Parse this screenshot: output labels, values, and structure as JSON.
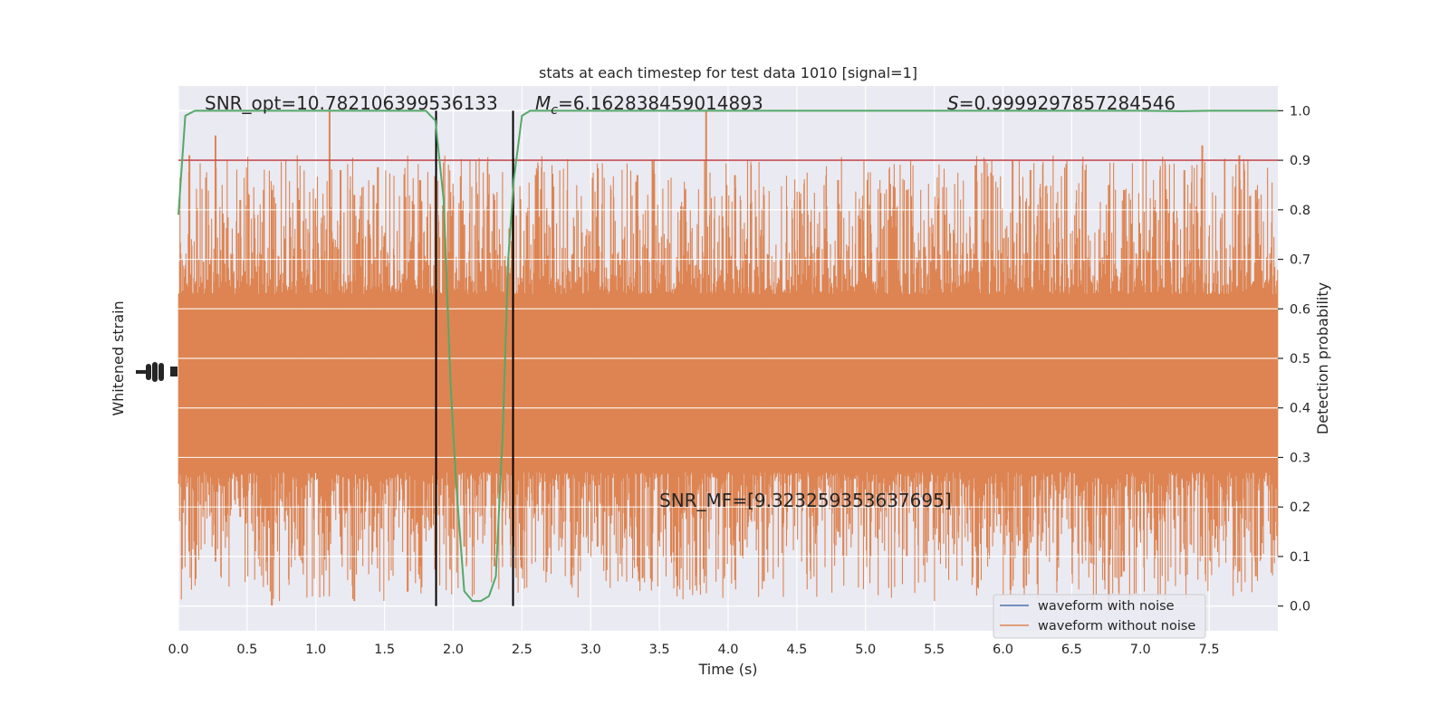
{
  "chart_data": {
    "type": "line",
    "title": "stats at each timestep for test data 1010 [signal=1]",
    "xlabel": "Time (s)",
    "ylabel_left": "Whitened strain",
    "ylabel_right": "Detection probability",
    "xlim": [
      0.0,
      8.0
    ],
    "ylim_right": [
      -0.05,
      1.05
    ],
    "x_ticks": [
      "0.0",
      "0.5",
      "1.0",
      "1.5",
      "2.0",
      "2.5",
      "3.0",
      "3.5",
      "4.0",
      "4.5",
      "5.0",
      "5.5",
      "6.0",
      "6.5",
      "7.0",
      "7.5"
    ],
    "x_tick_values": [
      0.0,
      0.5,
      1.0,
      1.5,
      2.0,
      2.5,
      3.0,
      3.5,
      4.0,
      4.5,
      5.0,
      5.5,
      6.0,
      6.5,
      7.0,
      7.5
    ],
    "y_right_ticks": [
      "0.0",
      "0.1",
      "0.2",
      "0.3",
      "0.4",
      "0.5",
      "0.6",
      "0.7",
      "0.8",
      "0.9",
      "1.0"
    ],
    "y_right_tick_values": [
      0.0,
      0.1,
      0.2,
      0.3,
      0.4,
      0.5,
      0.6,
      0.7,
      0.8,
      0.9,
      1.0
    ],
    "grid": true,
    "legend_placement": "lower-right",
    "series": [
      {
        "name": "waveform with noise",
        "color": "#4c72b0",
        "axis": "left"
      },
      {
        "name": "waveform without noise",
        "color": "#dd8452",
        "axis": "left"
      }
    ],
    "detection_probability": {
      "color": "#55a868",
      "x": [
        0.0,
        0.05,
        0.12,
        0.2,
        0.3,
        0.5,
        1.0,
        1.5,
        1.7,
        1.8,
        1.87,
        1.93,
        1.98,
        2.02,
        2.08,
        2.14,
        2.2,
        2.26,
        2.31,
        2.36,
        2.4,
        2.44,
        2.5,
        2.56,
        2.65,
        3.0,
        4.0,
        5.0,
        6.0,
        7.0,
        7.3,
        7.5,
        8.0
      ],
      "y": [
        0.79,
        0.99,
        1.0,
        1.0,
        1.0,
        1.0,
        1.0,
        1.0,
        1.0,
        1.0,
        0.98,
        0.82,
        0.45,
        0.25,
        0.03,
        0.01,
        0.01,
        0.02,
        0.06,
        0.35,
        0.7,
        0.86,
        0.99,
        1.0,
        1.0,
        1.0,
        1.0,
        1.0,
        1.0,
        1.0,
        0.999,
        1.0,
        1.0
      ]
    },
    "threshold": {
      "value": 0.9,
      "color": "#c44e52"
    },
    "vertical_markers": {
      "x": [
        1.875,
        2.435
      ],
      "color": "#000000"
    },
    "waveform_band": {
      "center": 0.45,
      "core_half_width": 0.14,
      "spikes": [
        [
          0.08,
          0.91,
          0.11
        ],
        [
          0.27,
          0.95,
          0.09
        ],
        [
          0.45,
          0.82,
          0.18
        ],
        [
          0.68,
          0.84,
          0.0
        ],
        [
          0.88,
          0.82,
          0.1
        ],
        [
          1.1,
          1.0,
          0.15
        ],
        [
          1.18,
          0.88,
          0.14
        ],
        [
          1.28,
          0.83,
          0.01
        ],
        [
          1.42,
          0.85,
          0.15
        ],
        [
          1.76,
          0.86,
          0.08
        ],
        [
          2.08,
          0.77,
          0.12
        ],
        [
          2.3,
          0.82,
          0.08
        ],
        [
          2.6,
          0.87,
          0.2
        ],
        [
          3.05,
          0.8,
          0.12
        ],
        [
          3.34,
          0.87,
          0.22
        ],
        [
          3.45,
          0.9,
          0.18
        ],
        [
          3.84,
          1.0,
          0.18
        ],
        [
          4.05,
          0.87,
          0.15
        ],
        [
          4.26,
          0.83,
          0.05
        ],
        [
          4.8,
          0.86,
          0.15
        ],
        [
          5.3,
          0.84,
          0.1
        ],
        [
          5.8,
          0.89,
          0.12
        ],
        [
          6.07,
          0.9,
          0.13
        ],
        [
          6.2,
          0.88,
          0.15
        ],
        [
          6.6,
          0.88,
          0.13
        ],
        [
          6.77,
          0.85,
          -0.01
        ],
        [
          6.88,
          0.84,
          0.07
        ],
        [
          7.32,
          0.88,
          0.17
        ],
        [
          7.45,
          0.93,
          0.1
        ],
        [
          7.72,
          0.91,
          0.07
        ],
        [
          7.84,
          0.84,
          0.06
        ]
      ]
    },
    "annotations": [
      {
        "text": "SNR_opt=10.782106399536133"
      },
      {
        "text_main": "M",
        "text_sub": "c",
        "text_rest": "=6.162838459014893"
      },
      {
        "text_main": "S",
        "text_rest": "=0.9999297857284546"
      },
      {
        "text": "SNR_MF=[9.323259353637695]"
      }
    ]
  }
}
